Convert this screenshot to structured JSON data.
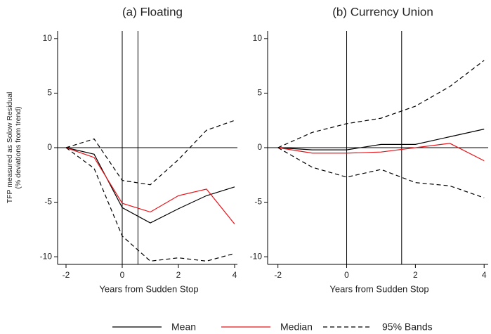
{
  "chart_data": [
    {
      "type": "line",
      "title": "(a) Floating",
      "xlabel": "Years from Sudden Stop",
      "ylabel": [
        "TFP measured as Solow Residual",
        "(% deviations from trend)"
      ],
      "x": [
        -2,
        -1,
        0,
        1,
        2,
        3,
        4
      ],
      "xlim": [
        -2.3,
        4.2
      ],
      "xticks": [
        -2,
        0,
        2,
        4
      ],
      "ylim": [
        -10.7,
        10.7
      ],
      "yticks": [
        -10,
        -5,
        0,
        5,
        10
      ],
      "vlines": [
        0,
        0.56
      ],
      "hline": 0,
      "series": [
        {
          "name": "Mean",
          "color": "#000000",
          "values": [
            0,
            -0.6,
            -5.5,
            -6.9,
            -5.6,
            -4.4,
            -3.6
          ]
        },
        {
          "name": "Median",
          "color": "#e8141a",
          "values": [
            0,
            -0.9,
            -5.1,
            -5.9,
            -4.4,
            -3.8,
            -7.0
          ]
        },
        {
          "name": "95% Bands",
          "color": "#000000",
          "dashed": true,
          "upper": [
            0,
            0.8,
            -3.0,
            -3.4,
            -1.1,
            1.6,
            2.5
          ],
          "lower": [
            0,
            -1.9,
            -8.1,
            -10.4,
            -10.1,
            -10.4,
            -9.7
          ]
        }
      ]
    },
    {
      "type": "line",
      "title": "(b) Currency Union",
      "xlabel": "Years from Sudden Stop",
      "x": [
        -2,
        -1,
        0,
        1,
        2,
        3,
        4
      ],
      "xlim": [
        -2.3,
        4.2
      ],
      "xticks": [
        -2,
        0,
        2,
        4
      ],
      "ylim": [
        -10.7,
        10.7
      ],
      "yticks": [
        -10,
        -5,
        0,
        5,
        10
      ],
      "vlines": [
        0,
        1.6
      ],
      "hline": 0,
      "series": [
        {
          "color": "#000000",
          "values": [
            0,
            -0.2,
            -0.2,
            0.3,
            0.3,
            1.0,
            1.7
          ]
        },
        {
          "color": "#e8141a",
          "values": [
            0,
            -0.5,
            -0.5,
            -0.4,
            0.0,
            0.4,
            -1.2
          ]
        },
        {
          "color": "#000000",
          "dashed": true,
          "upper": [
            0,
            1.4,
            2.2,
            2.7,
            3.8,
            5.6,
            8.0
          ],
          "lower": [
            0,
            -1.8,
            -2.7,
            -2.0,
            -3.2,
            -3.5,
            -4.6
          ]
        }
      ]
    }
  ]
}
